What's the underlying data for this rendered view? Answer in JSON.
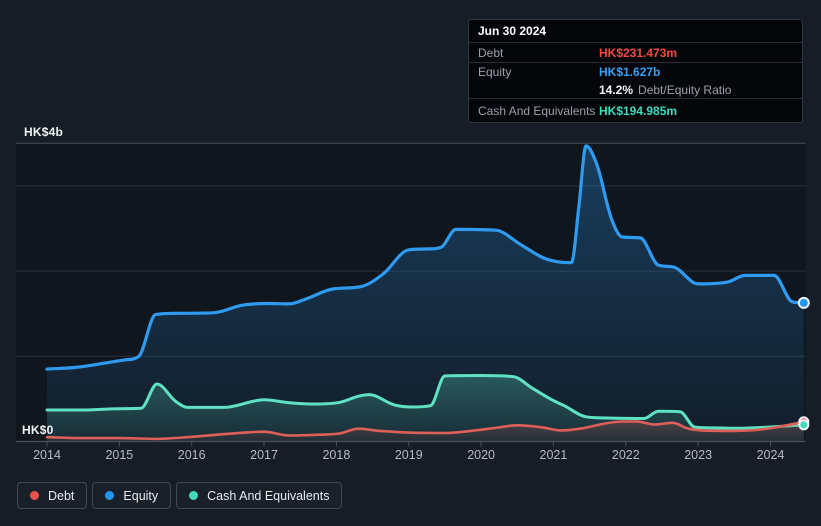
{
  "colors": {
    "page_bg": "#171d26",
    "panel_bg": "#10161e",
    "grid_minor": "#29303a",
    "grid_major": "#48515c",
    "text_primary": "#eef2f5",
    "text_muted": "#b4bbc3",
    "debt": "#e2574e",
    "equity": "#2f9bf0",
    "cash": "#41dabb"
  },
  "tooltip": {
    "date": "Jun 30 2024",
    "debt_label": "Debt",
    "debt_value": "HK$231.473m",
    "equity_label": "Equity",
    "equity_value": "HK$1.627b",
    "ratio_value": "14.2%",
    "ratio_label": "Debt/Equity Ratio",
    "cash_label": "Cash And Equivalents",
    "cash_value": "HK$194.985m"
  },
  "legend": {
    "items": [
      {
        "id": "debt",
        "label": "Debt",
        "color": "#e9544a"
      },
      {
        "id": "equity",
        "label": "Equity",
        "color": "#2196f3"
      },
      {
        "id": "cash",
        "label": "Cash And Equivalents",
        "color": "#41dabb"
      }
    ]
  },
  "chart_data": {
    "type": "area",
    "unit": "HK$ billions",
    "x_tick_labels": [
      "2014",
      "2015",
      "2016",
      "2017",
      "2018",
      "2019",
      "2020",
      "2021",
      "2022",
      "2023",
      "2024"
    ],
    "y_axis": {
      "top_label": "HK$4b",
      "zero_label": "HK$0",
      "ylim": [
        0,
        3.5
      ],
      "gridlines_at_b": [
        1,
        2,
        3
      ]
    },
    "legend_position": "bottom-left",
    "latest": {
      "date": "Jun 30 2024",
      "debt_b": 0.231473,
      "equity_b": 1.627,
      "cash_b": 0.194985,
      "debt_equity_ratio_pct": 14.2
    },
    "series": [
      {
        "name": "Equity",
        "color": "#2f9bf0",
        "fill_top": "rgba(47,155,240,0.30)",
        "fill_bottom": "rgba(47,155,240,0.06)",
        "points": [
          [
            2014.0,
            0.85
          ],
          [
            2014.4,
            0.87
          ],
          [
            2014.8,
            0.92
          ],
          [
            2015.1,
            0.96
          ],
          [
            2015.27,
            1.0
          ],
          [
            2015.5,
            1.49
          ],
          [
            2015.75,
            1.505
          ],
          [
            2016.3,
            1.51
          ],
          [
            2016.7,
            1.6
          ],
          [
            2017.05,
            1.62
          ],
          [
            2017.35,
            1.615
          ],
          [
            2017.6,
            1.68
          ],
          [
            2017.95,
            1.79
          ],
          [
            2018.35,
            1.82
          ],
          [
            2018.65,
            1.97
          ],
          [
            2019.0,
            2.25
          ],
          [
            2019.3,
            2.26
          ],
          [
            2019.45,
            2.28
          ],
          [
            2019.65,
            2.49
          ],
          [
            2020.2,
            2.48
          ],
          [
            2020.55,
            2.31
          ],
          [
            2020.85,
            2.16
          ],
          [
            2021.05,
            2.11
          ],
          [
            2021.25,
            2.1
          ],
          [
            2021.35,
            2.75
          ],
          [
            2021.45,
            3.47
          ],
          [
            2021.6,
            3.25
          ],
          [
            2021.8,
            2.62
          ],
          [
            2021.95,
            2.4
          ],
          [
            2022.2,
            2.39
          ],
          [
            2022.45,
            2.07
          ],
          [
            2022.65,
            2.05
          ],
          [
            2023.0,
            1.85
          ],
          [
            2023.4,
            1.87
          ],
          [
            2023.65,
            1.95
          ],
          [
            2024.05,
            1.95
          ],
          [
            2024.3,
            1.64
          ],
          [
            2024.46,
            1.627
          ]
        ]
      },
      {
        "name": "Cash And Equivalents",
        "color": "#5fe2c4",
        "fill_top": "rgba(95,226,196,0.30)",
        "fill_bottom": "rgba(95,226,196,0.07)",
        "points": [
          [
            2014.0,
            0.37
          ],
          [
            2014.5,
            0.37
          ],
          [
            2015.0,
            0.385
          ],
          [
            2015.3,
            0.39
          ],
          [
            2015.52,
            0.675
          ],
          [
            2015.78,
            0.47
          ],
          [
            2015.95,
            0.4
          ],
          [
            2016.45,
            0.4
          ],
          [
            2017.0,
            0.49
          ],
          [
            2017.35,
            0.455
          ],
          [
            2017.7,
            0.44
          ],
          [
            2018.05,
            0.46
          ],
          [
            2018.3,
            0.53
          ],
          [
            2018.45,
            0.55
          ],
          [
            2018.8,
            0.43
          ],
          [
            2019.05,
            0.405
          ],
          [
            2019.3,
            0.42
          ],
          [
            2019.5,
            0.77
          ],
          [
            2020.0,
            0.775
          ],
          [
            2020.45,
            0.76
          ],
          [
            2020.7,
            0.63
          ],
          [
            2021.0,
            0.48
          ],
          [
            2021.15,
            0.42
          ],
          [
            2021.45,
            0.29
          ],
          [
            2021.8,
            0.275
          ],
          [
            2022.25,
            0.27
          ],
          [
            2022.45,
            0.355
          ],
          [
            2022.75,
            0.35
          ],
          [
            2022.95,
            0.17
          ],
          [
            2023.2,
            0.16
          ],
          [
            2023.55,
            0.155
          ],
          [
            2024.0,
            0.17
          ],
          [
            2024.46,
            0.195
          ]
        ]
      },
      {
        "name": "Debt",
        "color": "#de5f57",
        "fill_top": "rgba(226,87,78,0.30)",
        "fill_bottom": "rgba(226,87,78,0.05)",
        "points": [
          [
            2014.0,
            0.05
          ],
          [
            2014.5,
            0.04
          ],
          [
            2015.0,
            0.04
          ],
          [
            2015.5,
            0.03
          ],
          [
            2016.0,
            0.055
          ],
          [
            2016.5,
            0.09
          ],
          [
            2017.0,
            0.115
          ],
          [
            2017.35,
            0.07
          ],
          [
            2017.75,
            0.08
          ],
          [
            2018.05,
            0.095
          ],
          [
            2018.3,
            0.15
          ],
          [
            2018.6,
            0.125
          ],
          [
            2019.0,
            0.105
          ],
          [
            2019.5,
            0.1
          ],
          [
            2020.15,
            0.155
          ],
          [
            2020.5,
            0.19
          ],
          [
            2020.85,
            0.165
          ],
          [
            2021.1,
            0.13
          ],
          [
            2021.4,
            0.155
          ],
          [
            2021.7,
            0.21
          ],
          [
            2021.95,
            0.235
          ],
          [
            2022.15,
            0.235
          ],
          [
            2022.4,
            0.2
          ],
          [
            2022.65,
            0.22
          ],
          [
            2022.85,
            0.155
          ],
          [
            2023.05,
            0.13
          ],
          [
            2023.5,
            0.125
          ],
          [
            2023.8,
            0.135
          ],
          [
            2024.1,
            0.17
          ],
          [
            2024.46,
            0.2315
          ]
        ]
      }
    ]
  }
}
